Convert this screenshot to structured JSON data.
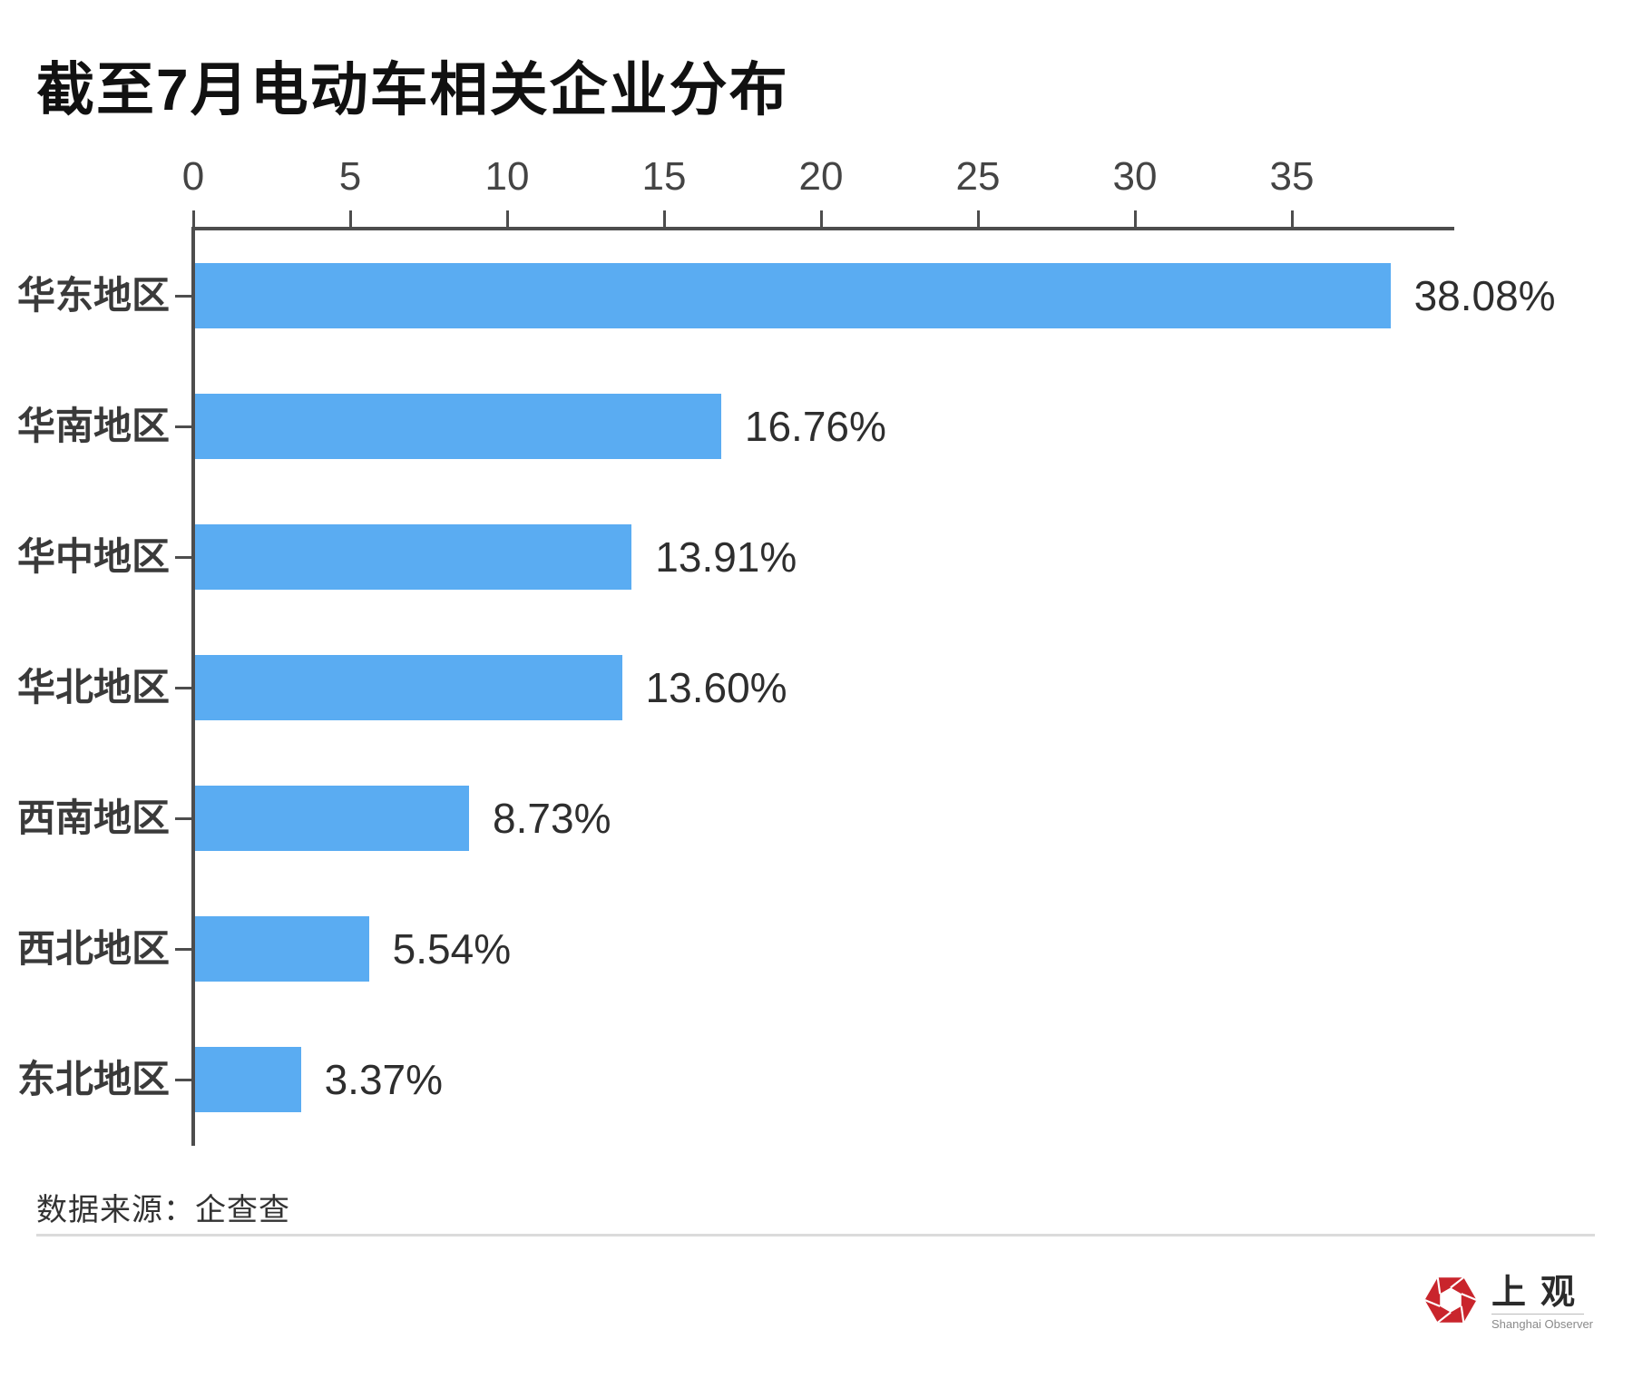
{
  "title": "截至7月电动车相关企业分布",
  "chart_data": {
    "type": "bar",
    "orientation": "horizontal",
    "title": "截至7月电动车相关企业分布",
    "categories": [
      "华东地区",
      "华南地区",
      "华中地区",
      "华北地区",
      "西南地区",
      "西北地区",
      "东北地区"
    ],
    "values": [
      38.08,
      16.76,
      13.91,
      13.6,
      8.73,
      5.54,
      3.37
    ],
    "value_labels": [
      "38.08%",
      "16.76%",
      "13.91%",
      "13.60%",
      "8.73%",
      "5.54%",
      "3.37%"
    ],
    "x_ticks": [
      0,
      5,
      10,
      15,
      20,
      25,
      30,
      35
    ],
    "xlim": [
      0,
      40
    ],
    "xlabel": "",
    "ylabel": "",
    "grid": false,
    "legend": false,
    "bar_color": "#5aacf2",
    "axis_color": "#4d4d4d",
    "label_color": "#3a3a3a",
    "value_color": "#2e2e2e"
  },
  "source": {
    "label": "数据来源：企查查"
  },
  "footer_logo": {
    "cn": "上观",
    "en": "Shanghai Observer",
    "red": "#c9252c"
  }
}
